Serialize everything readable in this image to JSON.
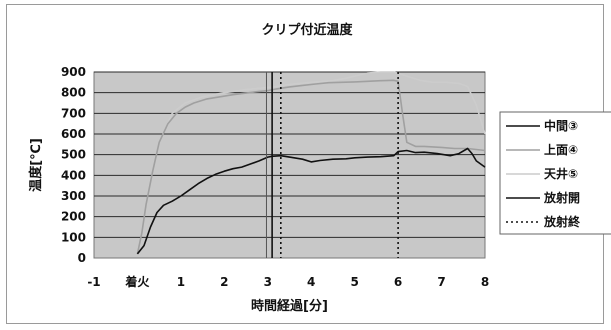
{
  "chart_data": {
    "type": "line",
    "title": "クリプ付近温度",
    "xlabel": "時間経過[分]",
    "ylabel": "温度[℃]",
    "xlim": [
      -1,
      8
    ],
    "ylim": [
      0,
      900
    ],
    "x_ticks": [
      {
        "v": -1,
        "label": "-1"
      },
      {
        "v": 0,
        "label": "着火"
      },
      {
        "v": 1,
        "label": "1"
      },
      {
        "v": 2,
        "label": "2"
      },
      {
        "v": 3,
        "label": "3"
      },
      {
        "v": 4,
        "label": "4"
      },
      {
        "v": 5,
        "label": "5"
      },
      {
        "v": 6,
        "label": "6"
      },
      {
        "v": 7,
        "label": "7"
      },
      {
        "v": 8,
        "label": "8"
      }
    ],
    "y_ticks": [
      0,
      100,
      200,
      300,
      400,
      500,
      600,
      700,
      800,
      900
    ],
    "grid": true,
    "legend_position": "right",
    "plot_background": "#c8c8c8",
    "series": [
      {
        "name": "中間③",
        "color": "#111111",
        "style": "solid",
        "points": [
          [
            0.0,
            20
          ],
          [
            0.15,
            60
          ],
          [
            0.3,
            150
          ],
          [
            0.45,
            220
          ],
          [
            0.6,
            255
          ],
          [
            0.8,
            275
          ],
          [
            1.0,
            300
          ],
          [
            1.2,
            330
          ],
          [
            1.4,
            360
          ],
          [
            1.6,
            385
          ],
          [
            1.8,
            405
          ],
          [
            2.0,
            420
          ],
          [
            2.2,
            432
          ],
          [
            2.4,
            440
          ],
          [
            2.6,
            455
          ],
          [
            2.8,
            470
          ],
          [
            3.0,
            488
          ],
          [
            3.1,
            492
          ],
          [
            3.3,
            495
          ],
          [
            3.5,
            488
          ],
          [
            3.8,
            478
          ],
          [
            4.0,
            465
          ],
          [
            4.2,
            472
          ],
          [
            4.5,
            478
          ],
          [
            4.8,
            480
          ],
          [
            5.0,
            485
          ],
          [
            5.3,
            488
          ],
          [
            5.6,
            490
          ],
          [
            5.9,
            495
          ],
          [
            6.0,
            515
          ],
          [
            6.2,
            520
          ],
          [
            6.4,
            510
          ],
          [
            6.6,
            512
          ],
          [
            6.9,
            505
          ],
          [
            7.2,
            495
          ],
          [
            7.4,
            505
          ],
          [
            7.6,
            530
          ],
          [
            7.7,
            505
          ],
          [
            7.8,
            470
          ],
          [
            8.0,
            440
          ]
        ]
      },
      {
        "name": "上面④",
        "color": "#a0a0a0",
        "style": "solid",
        "points": [
          [
            0.0,
            20
          ],
          [
            0.1,
            120
          ],
          [
            0.2,
            260
          ],
          [
            0.35,
            420
          ],
          [
            0.5,
            560
          ],
          [
            0.7,
            650
          ],
          [
            0.9,
            700
          ],
          [
            1.1,
            730
          ],
          [
            1.3,
            750
          ],
          [
            1.6,
            770
          ],
          [
            1.9,
            780
          ],
          [
            2.2,
            790
          ],
          [
            2.5,
            798
          ],
          [
            2.8,
            806
          ],
          [
            3.0,
            810
          ],
          [
            3.2,
            818
          ],
          [
            3.5,
            828
          ],
          [
            3.8,
            835
          ],
          [
            4.1,
            842
          ],
          [
            4.4,
            848
          ],
          [
            4.7,
            850
          ],
          [
            5.0,
            852
          ],
          [
            5.3,
            855
          ],
          [
            5.6,
            858
          ],
          [
            5.9,
            860
          ],
          [
            6.0,
            855
          ],
          [
            6.1,
            700
          ],
          [
            6.2,
            560
          ],
          [
            6.4,
            540
          ],
          [
            6.6,
            540
          ],
          [
            7.0,
            535
          ],
          [
            7.3,
            530
          ],
          [
            7.6,
            530
          ],
          [
            7.8,
            525
          ],
          [
            8.0,
            520
          ]
        ]
      },
      {
        "name": "天井⑤",
        "color": "#cccccc",
        "style": "solid",
        "points": [
          [
            0.5,
            560
          ],
          [
            0.8,
            700
          ],
          [
            1.1,
            750
          ],
          [
            1.5,
            780
          ],
          [
            2.0,
            800
          ],
          [
            2.5,
            815
          ],
          [
            3.0,
            825
          ],
          [
            3.2,
            830
          ],
          [
            3.5,
            840
          ],
          [
            4.0,
            850
          ],
          [
            4.5,
            858
          ],
          [
            4.8,
            870
          ],
          [
            5.0,
            880
          ],
          [
            5.3,
            895
          ],
          [
            5.6,
            900
          ],
          [
            5.9,
            900
          ],
          [
            6.2,
            880
          ],
          [
            6.5,
            860
          ],
          [
            6.8,
            850
          ],
          [
            7.1,
            850
          ],
          [
            7.4,
            845
          ],
          [
            7.6,
            830
          ],
          [
            7.8,
            740
          ],
          [
            8.0,
            600
          ]
        ]
      }
    ],
    "vertical_markers": [
      {
        "name": "放射開",
        "x": 3.1,
        "color": "#111111",
        "style": "solid"
      },
      {
        "name": "放射終",
        "x": 3.3,
        "color": "#111111",
        "style": "dotted"
      },
      {
        "name": "放射終",
        "x": 6.0,
        "color": "#111111",
        "style": "dotted",
        "in_legend": false
      }
    ],
    "legend": [
      {
        "label": "中間③",
        "color": "#111111",
        "style": "solid"
      },
      {
        "label": "上面④",
        "color": "#a0a0a0",
        "style": "solid"
      },
      {
        "label": "天井⑤",
        "color": "#cccccc",
        "style": "solid"
      },
      {
        "label": "放射開",
        "color": "#111111",
        "style": "solid"
      },
      {
        "label": "放射終",
        "color": "#111111",
        "style": "dotted"
      }
    ]
  }
}
